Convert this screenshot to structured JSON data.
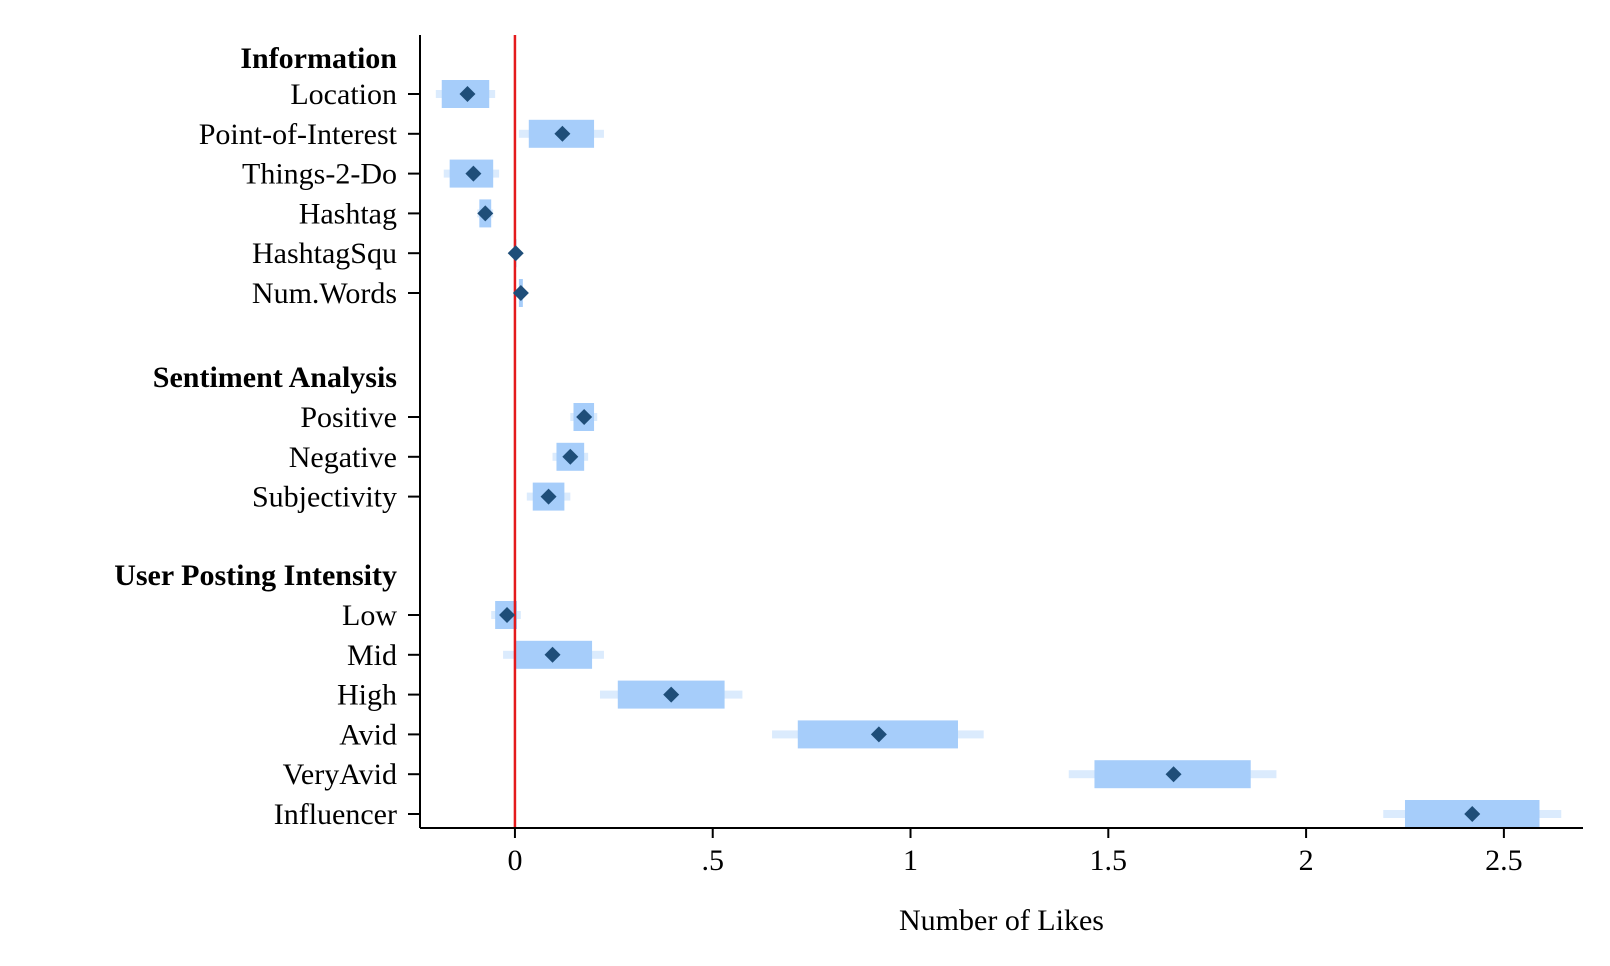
{
  "chart_data": {
    "type": "coefficient_plot",
    "xlabel": "Number of Likes",
    "xlim": [
      -0.24,
      2.7
    ],
    "xticks": [
      0,
      0.5,
      1,
      1.5,
      2,
      2.5
    ],
    "xtick_labels": [
      "0",
      ".5",
      "1",
      "1.5",
      "2",
      "2.5"
    ],
    "reference_line": {
      "x": 0,
      "color": "#e41a1c"
    },
    "colors": {
      "point": "#1f4e79",
      "ci_inner": "#a6cdfa",
      "ci_outer": "#dbebfd",
      "axis": "#000000"
    },
    "groups": [
      {
        "title": "Information",
        "items": [
          {
            "name": "Location",
            "estimate": -0.12,
            "ci95": [
              -0.185,
              -0.065
            ],
            "ci99": [
              -0.2,
              -0.05
            ]
          },
          {
            "name": "Point-of-Interest",
            "estimate": 0.12,
            "ci95": [
              0.035,
              0.2
            ],
            "ci99": [
              0.01,
              0.225
            ]
          },
          {
            "name": "Things-2-Do",
            "estimate": -0.105,
            "ci95": [
              -0.165,
              -0.055
            ],
            "ci99": [
              -0.18,
              -0.04
            ]
          },
          {
            "name": "Hashtag",
            "estimate": -0.075,
            "ci95": [
              -0.09,
              -0.06
            ],
            "ci99": [
              -0.095,
              -0.055
            ]
          },
          {
            "name": "HashtagSqu",
            "estimate": 0.002,
            "ci95": [
              0,
              0.004
            ],
            "ci99": [
              -0.002,
              0.006
            ]
          },
          {
            "name": "Num.Words",
            "estimate": 0.015,
            "ci95": [
              0.01,
              0.02
            ],
            "ci99": [
              0.005,
              0.025
            ]
          }
        ]
      },
      {
        "title": "Sentiment Analysis",
        "items": [
          {
            "name": "Positive",
            "estimate": 0.175,
            "ci95": [
              0.148,
              0.2
            ],
            "ci99": [
              0.14,
              0.208
            ]
          },
          {
            "name": "Negative",
            "estimate": 0.14,
            "ci95": [
              0.105,
              0.175
            ],
            "ci99": [
              0.095,
              0.185
            ]
          },
          {
            "name": "Subjectivity",
            "estimate": 0.085,
            "ci95": [
              0.045,
              0.125
            ],
            "ci99": [
              0.03,
              0.14
            ]
          }
        ]
      },
      {
        "title": "User Posting Intensity",
        "items": [
          {
            "name": "Low",
            "estimate": -0.02,
            "ci95": [
              -0.05,
              0.005
            ],
            "ci99": [
              -0.06,
              0.015
            ]
          },
          {
            "name": "Mid",
            "estimate": 0.095,
            "ci95": [
              0,
              0.195
            ],
            "ci99": [
              -0.03,
              0.225
            ]
          },
          {
            "name": "High",
            "estimate": 0.395,
            "ci95": [
              0.26,
              0.53
            ],
            "ci99": [
              0.215,
              0.575
            ]
          },
          {
            "name": "Avid",
            "estimate": 0.92,
            "ci95": [
              0.715,
              1.12
            ],
            "ci99": [
              0.65,
              1.185
            ]
          },
          {
            "name": "VeryAvid",
            "estimate": 1.665,
            "ci95": [
              1.465,
              1.86
            ],
            "ci99": [
              1.4,
              1.925
            ]
          },
          {
            "name": "Influencer",
            "estimate": 2.42,
            "ci95": [
              2.25,
              2.59
            ],
            "ci99": [
              2.195,
              2.645
            ]
          }
        ]
      }
    ]
  }
}
